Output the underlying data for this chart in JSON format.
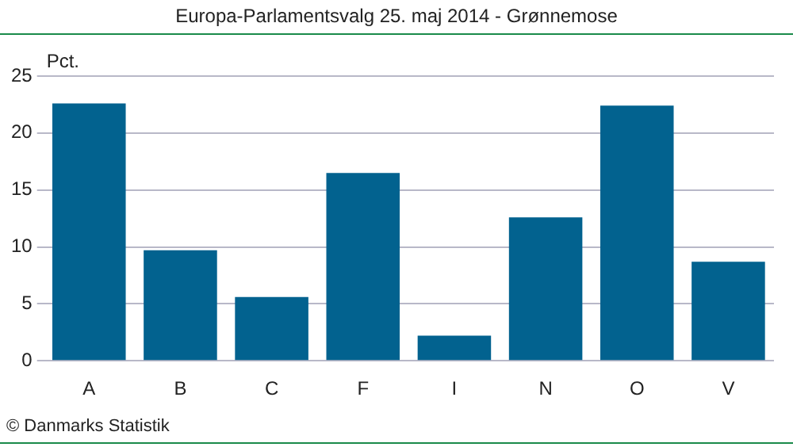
{
  "chart_data": {
    "type": "bar",
    "title": "Europa-Parlamentsvalg 25. maj 2014 - Grønnemose",
    "ylabel": "Pct.",
    "categories": [
      "A",
      "B",
      "C",
      "F",
      "I",
      "N",
      "O",
      "V"
    ],
    "values": [
      22.6,
      9.7,
      5.6,
      16.5,
      2.2,
      12.6,
      22.4,
      8.7
    ],
    "color": "#02628f",
    "ylim": [
      0,
      25
    ],
    "yticks": [
      0,
      5,
      10,
      15,
      20,
      25
    ],
    "grid": "y",
    "legend": false,
    "annotations": [
      "© Danmarks Statistik"
    ]
  }
}
